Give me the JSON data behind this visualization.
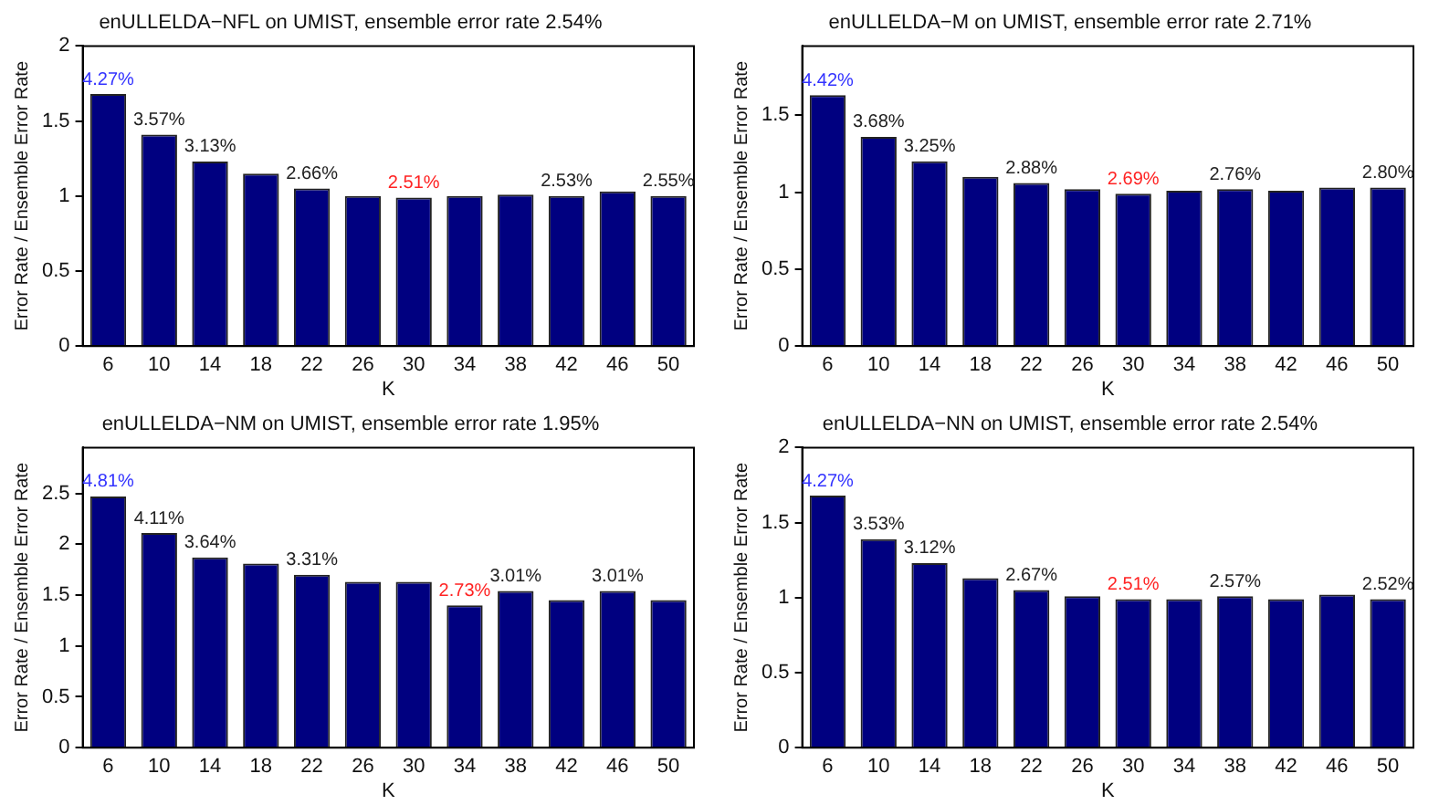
{
  "chart_data": [
    {
      "type": "bar",
      "title": "enULLELDA−NFL on UMIST, ensemble error rate 2.54%",
      "xlabel": "K",
      "ylabel": "Error Rate / Ensemble Error Rate",
      "categories": [
        "6",
        "10",
        "14",
        "18",
        "22",
        "26",
        "30",
        "34",
        "38",
        "42",
        "46",
        "50"
      ],
      "color": "#000080",
      "values": [
        1.68,
        1.41,
        1.23,
        1.15,
        1.05,
        1.0,
        0.99,
        1.0,
        1.01,
        1.0,
        1.03,
        1.0
      ],
      "annotations": [
        {
          "text": "4.27%",
          "x": "6",
          "y": 1.68
        },
        {
          "text": "3.57%",
          "x": "10",
          "y": 1.41
        },
        {
          "text": "3.13%",
          "x": "14",
          "y": 1.23
        },
        {
          "text": "2.66%",
          "x": "22",
          "y": 1.05
        },
        {
          "text": "2.51%",
          "x": "30",
          "y": 0.99
        },
        {
          "text": "2.53%",
          "x": "42",
          "y": 1.0
        },
        {
          "text": "2.55%",
          "x": "50",
          "y": 1.0
        }
      ],
      "ylim": [
        0,
        2
      ],
      "yticks": [
        0,
        0.5,
        1,
        1.5,
        2
      ],
      "grid": false
    },
    {
      "type": "bar",
      "title": "enULLELDA−M on UMIST, ensemble error rate 2.71%",
      "xlabel": "K",
      "ylabel": "Error Rate / Ensemble Error Rate",
      "categories": [
        "6",
        "10",
        "14",
        "18",
        "22",
        "26",
        "30",
        "34",
        "38",
        "42",
        "46",
        "50"
      ],
      "color": "#000080",
      "values": [
        1.63,
        1.36,
        1.2,
        1.1,
        1.06,
        1.02,
        0.99,
        1.01,
        1.02,
        1.01,
        1.03,
        1.03
      ],
      "annotations": [
        {
          "text": "4.42%",
          "x": "6",
          "y": 1.63
        },
        {
          "text": "3.68%",
          "x": "10",
          "y": 1.36
        },
        {
          "text": "3.25%",
          "x": "14",
          "y": 1.2
        },
        {
          "text": "2.88%",
          "x": "22",
          "y": 1.06
        },
        {
          "text": "2.69%",
          "x": "30",
          "y": 0.99
        },
        {
          "text": "2.76%",
          "x": "38",
          "y": 1.02
        },
        {
          "text": "2.80%",
          "x": "50",
          "y": 1.03
        }
      ],
      "ylim": [
        0,
        1.95
      ],
      "yticks": [
        0,
        0.5,
        1,
        1.5
      ],
      "grid": false
    },
    {
      "type": "bar",
      "title": "enULLELDA−NM on UMIST, ensemble error rate 1.95%",
      "xlabel": "K",
      "ylabel": "Error Rate / Ensemble Error Rate",
      "categories": [
        "6",
        "10",
        "14",
        "18",
        "22",
        "26",
        "30",
        "34",
        "38",
        "42",
        "46",
        "50"
      ],
      "color": "#000080",
      "values": [
        2.47,
        2.11,
        1.87,
        1.81,
        1.7,
        1.63,
        1.63,
        1.4,
        1.54,
        1.45,
        1.54,
        1.45
      ],
      "annotations": [
        {
          "text": "4.81%",
          "x": "6",
          "y": 2.47
        },
        {
          "text": "4.11%",
          "x": "10",
          "y": 2.11
        },
        {
          "text": "3.64%",
          "x": "14",
          "y": 1.87
        },
        {
          "text": "3.31%",
          "x": "22",
          "y": 1.7
        },
        {
          "text": "2.73%",
          "x": "34",
          "y": 1.4
        },
        {
          "text": "3.01%",
          "x": "38",
          "y": 1.54
        },
        {
          "text": "3.01%",
          "x": "46",
          "y": 1.54
        }
      ],
      "ylim": [
        0,
        2.95
      ],
      "yticks": [
        0,
        0.5,
        1,
        1.5,
        2,
        2.5
      ],
      "grid": false
    },
    {
      "type": "bar",
      "title": "enULLELDA−NN on UMIST, ensemble error rate 2.54%",
      "xlabel": "K",
      "ylabel": "Error Rate / Ensemble Error Rate",
      "categories": [
        "6",
        "10",
        "14",
        "18",
        "22",
        "26",
        "30",
        "34",
        "38",
        "42",
        "46",
        "50"
      ],
      "color": "#000080",
      "values": [
        1.68,
        1.39,
        1.23,
        1.13,
        1.05,
        1.01,
        0.99,
        0.99,
        1.01,
        0.99,
        1.02,
        0.99
      ],
      "annotations": [
        {
          "text": "4.27%",
          "x": "6",
          "y": 1.68
        },
        {
          "text": "3.53%",
          "x": "10",
          "y": 1.39
        },
        {
          "text": "3.12%",
          "x": "14",
          "y": 1.23
        },
        {
          "text": "2.67%",
          "x": "22",
          "y": 1.05
        },
        {
          "text": "2.51%",
          "x": "30",
          "y": 0.99
        },
        {
          "text": "2.57%",
          "x": "38",
          "y": 1.01
        },
        {
          "text": "2.52%",
          "x": "50",
          "y": 0.99
        }
      ],
      "ylim": [
        0,
        2
      ],
      "yticks": [
        0,
        0.5,
        1,
        1.5,
        2
      ],
      "grid": false
    }
  ]
}
